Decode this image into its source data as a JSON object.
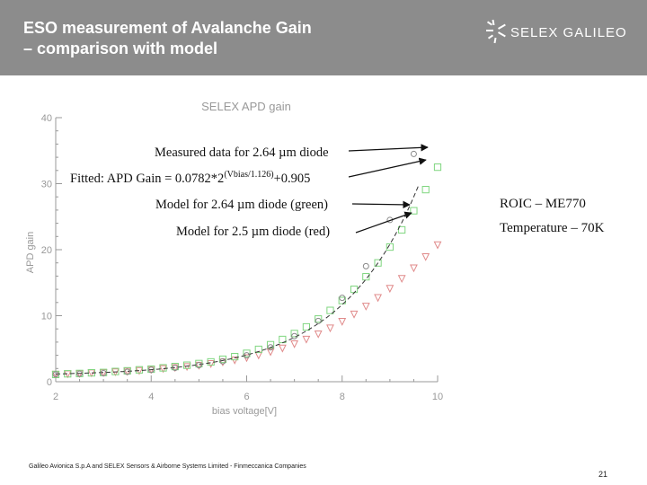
{
  "slide": {
    "title_line1": "ESO measurement of Avalanche Gain",
    "title_line2": "– comparison with model",
    "logo_text": "SELEX GALILEO",
    "footer": "Galileo Avionica S.p.A and SELEX Sensors & Airborne Systems Limited - Finmeccanica Companies",
    "page_number": "21",
    "roic": "ROIC – ME770",
    "temperature": "Temperature – 70K"
  },
  "annotations": {
    "measured": "Measured data for 2.64 µm diode",
    "fitted_prefix": "Fitted: APD Gain = 0.0782*2",
    "fitted_sup": "(Vbias/1.126)",
    "fitted_suffix": "+0.905",
    "model_green": "Model for 2.64 µm diode (green)",
    "model_red": "Model for 2.5 µm diode (red)"
  },
  "colors": {
    "header": "#8c8c8c",
    "measured": "#888888",
    "fit": "#333333",
    "green": "#7fd67f",
    "red": "#e08a8a",
    "axis": "#999999"
  },
  "chart_data": {
    "type": "scatter",
    "title": "SELEX APD gain",
    "xlabel": "bias voltage[V]",
    "ylabel": "APD gain",
    "xlim": [
      2,
      10
    ],
    "ylim": [
      0,
      40
    ],
    "xticks": [
      2,
      4,
      6,
      8,
      10
    ],
    "yticks": [
      0,
      10,
      20,
      30,
      40
    ],
    "xtick_labels": [
      "2",
      "4",
      "6",
      "8",
      "10"
    ],
    "ytick_labels": [
      "0",
      "10",
      "20",
      "30",
      "40"
    ],
    "fit": {
      "a": 0.0782,
      "base": 2,
      "scale": 1.126,
      "c": 0.905
    },
    "series": [
      {
        "name": "Measured data for 2.64 µm diode",
        "marker": "circle",
        "x": [
          2.0,
          2.5,
          3.0,
          3.5,
          4.0,
          4.5,
          5.0,
          5.5,
          6.0,
          6.5,
          7.0,
          7.5,
          8.0,
          8.5,
          9.0,
          9.5
        ],
        "y": [
          1.1,
          1.2,
          1.3,
          1.5,
          1.8,
          2.1,
          2.5,
          3.1,
          4.0,
          5.2,
          6.9,
          9.2,
          12.7,
          17.5,
          24.5,
          34.5
        ]
      },
      {
        "name": "Model for 2.64 µm diode (green)",
        "marker": "square",
        "x": [
          2.0,
          2.25,
          2.5,
          2.75,
          3.0,
          3.25,
          3.5,
          3.75,
          4.0,
          4.25,
          4.5,
          4.75,
          5.0,
          5.25,
          5.5,
          5.75,
          6.0,
          6.25,
          6.5,
          6.75,
          7.0,
          7.25,
          7.5,
          7.75,
          8.0,
          8.25,
          8.5,
          8.75,
          9.0,
          9.25,
          9.5,
          9.75,
          10.0
        ],
        "y": [
          1.1,
          1.2,
          1.25,
          1.35,
          1.4,
          1.55,
          1.65,
          1.8,
          1.9,
          2.1,
          2.3,
          2.5,
          2.75,
          3.0,
          3.4,
          3.8,
          4.3,
          4.9,
          5.6,
          6.4,
          7.3,
          8.3,
          9.5,
          10.8,
          12.3,
          14.0,
          15.9,
          18.0,
          20.4,
          23.0,
          25.9,
          29.1,
          32.5
        ]
      },
      {
        "name": "Model for 2.5 µm diode (red)",
        "marker": "triangle",
        "x": [
          2.0,
          2.25,
          2.5,
          2.75,
          3.0,
          3.25,
          3.5,
          3.75,
          4.0,
          4.25,
          4.5,
          4.75,
          5.0,
          5.25,
          5.5,
          5.75,
          6.0,
          6.25,
          6.5,
          6.75,
          7.0,
          7.25,
          7.5,
          7.75,
          8.0,
          8.25,
          8.5,
          8.75,
          9.0,
          9.25,
          9.5,
          9.75,
          10.0
        ],
        "y": [
          1.1,
          1.15,
          1.2,
          1.3,
          1.35,
          1.45,
          1.55,
          1.65,
          1.8,
          1.95,
          2.1,
          2.25,
          2.45,
          2.7,
          2.95,
          3.25,
          3.6,
          4.0,
          4.5,
          5.05,
          5.7,
          6.4,
          7.2,
          8.1,
          9.1,
          10.2,
          11.4,
          12.7,
          14.1,
          15.6,
          17.2,
          18.9,
          20.7
        ]
      }
    ]
  }
}
